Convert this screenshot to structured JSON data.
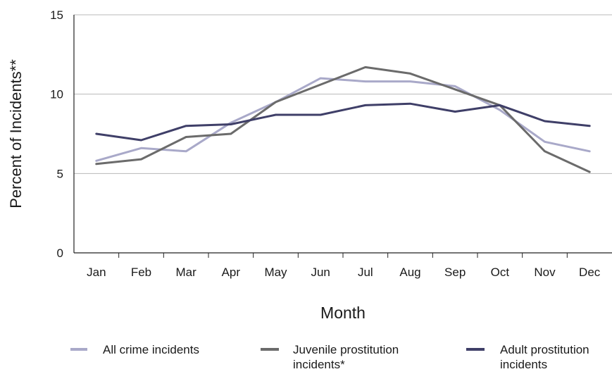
{
  "chart_data": {
    "type": "line",
    "xlabel": "Month",
    "ylabel": "Percent of Incidents**",
    "categories": [
      "Jan",
      "Feb",
      "Mar",
      "Apr",
      "May",
      "Jun",
      "Jul",
      "Aug",
      "Sep",
      "Oct",
      "Nov",
      "Dec"
    ],
    "ylim": [
      0,
      15
    ],
    "yticks": [
      0,
      5,
      10,
      15
    ],
    "grid": "horizontal",
    "legend_position": "bottom",
    "series": [
      {
        "name": "All crime incidents",
        "color": "#a9a9c9",
        "values": [
          5.8,
          6.6,
          6.4,
          8.2,
          9.5,
          11.0,
          10.8,
          10.8,
          10.5,
          9.0,
          7.0,
          6.4
        ]
      },
      {
        "name": "Juvenile prostitution incidents*",
        "color": "#6b6b6b",
        "values": [
          5.6,
          5.9,
          7.3,
          7.5,
          9.5,
          10.6,
          11.7,
          11.3,
          10.3,
          9.3,
          6.4,
          5.1
        ]
      },
      {
        "name": "Adult prostitution incidents",
        "color": "#3f3f68",
        "values": [
          7.5,
          7.1,
          8.0,
          8.1,
          8.7,
          8.7,
          9.3,
          9.4,
          8.9,
          9.3,
          8.3,
          8.0
        ]
      }
    ]
  }
}
